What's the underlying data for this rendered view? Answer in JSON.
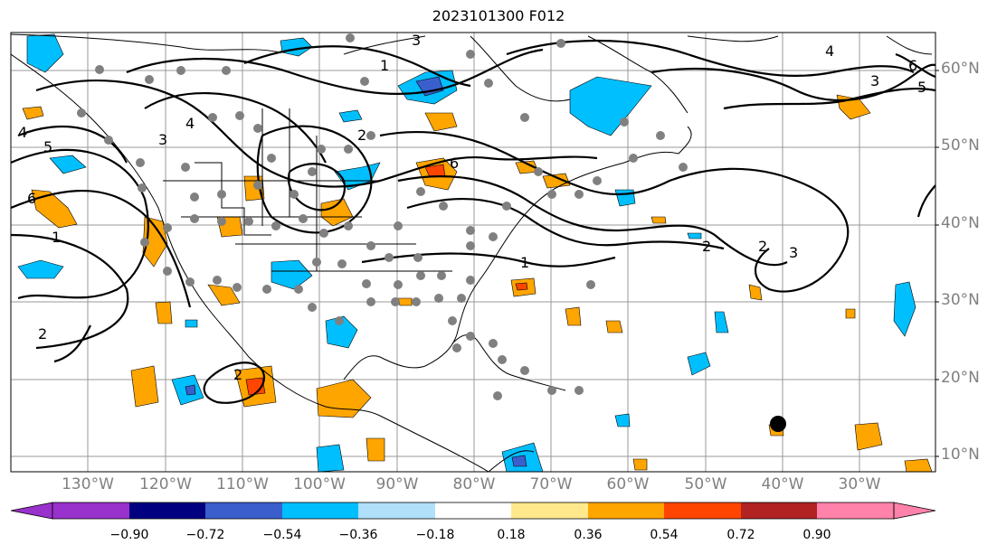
{
  "title": "2023101300 F012",
  "latitude_labels": [
    "10°N",
    "20°N",
    "30°N",
    "40°N",
    "50°N",
    "60°N"
  ],
  "longitude_labels": [
    "130°W",
    "120°W",
    "110°W",
    "100°W",
    "90°W",
    "80°W",
    "70°W",
    "60°W",
    "50°W",
    "40°W",
    "30°W"
  ],
  "contour_labels": [
    "1",
    "2",
    "3",
    "4",
    "5",
    "6"
  ],
  "colorbar": {
    "ticks": [
      "−0.90",
      "−0.72",
      "−0.54",
      "−0.36",
      "−0.18",
      "0.18",
      "0.36",
      "0.54",
      "0.72",
      "0.90"
    ],
    "colors": [
      "#9932cc",
      "#000080",
      "#3a5fcd",
      "#00bfff",
      "#b0e0fa",
      "#ffffff",
      "#ffe98c",
      "#ffa500",
      "#ff4500",
      "#b22222",
      "#ff82ab"
    ]
  },
  "colors": {
    "coast": "#000000",
    "grid": "#808080",
    "contour": "#000000",
    "station_dot": "#808080",
    "marker": "#000000"
  }
}
